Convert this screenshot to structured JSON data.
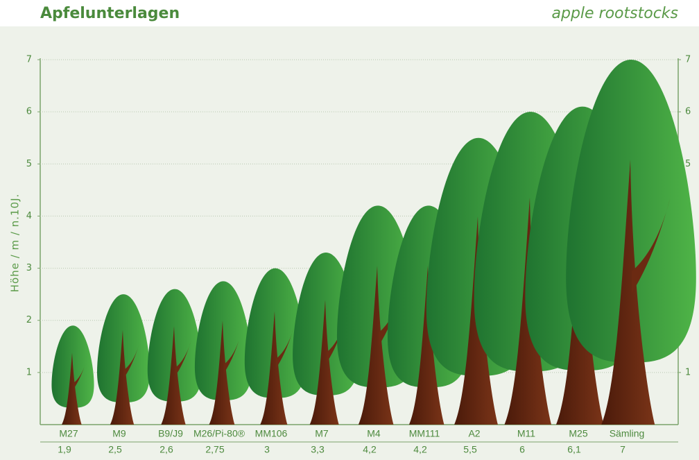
{
  "chart_data": {
    "type": "bar",
    "title": "Apfelunterlagen",
    "subtitle": "apple rootstocks",
    "y_label": "Höhe / m / n.10J.",
    "categories": [
      "M27",
      "M9",
      "B9/J9",
      "M26/Pi-80®",
      "MM106",
      "M7",
      "M4",
      "MM111",
      "A2",
      "M11",
      "M25",
      "Sämling"
    ],
    "values": [
      1.9,
      2.5,
      2.6,
      2.75,
      3,
      3.3,
      4.2,
      4.2,
      5.5,
      6,
      6.1,
      7
    ],
    "value_labels": [
      "1,9",
      "2,5",
      "2,6",
      "2,75",
      "3",
      "3,3",
      "4,2",
      "4,2",
      "5,5",
      "6",
      "6,1",
      "7"
    ],
    "ylim": [
      0,
      7
    ],
    "yticks": [
      1,
      2,
      3,
      4,
      5,
      6,
      7
    ],
    "grid": true
  }
}
